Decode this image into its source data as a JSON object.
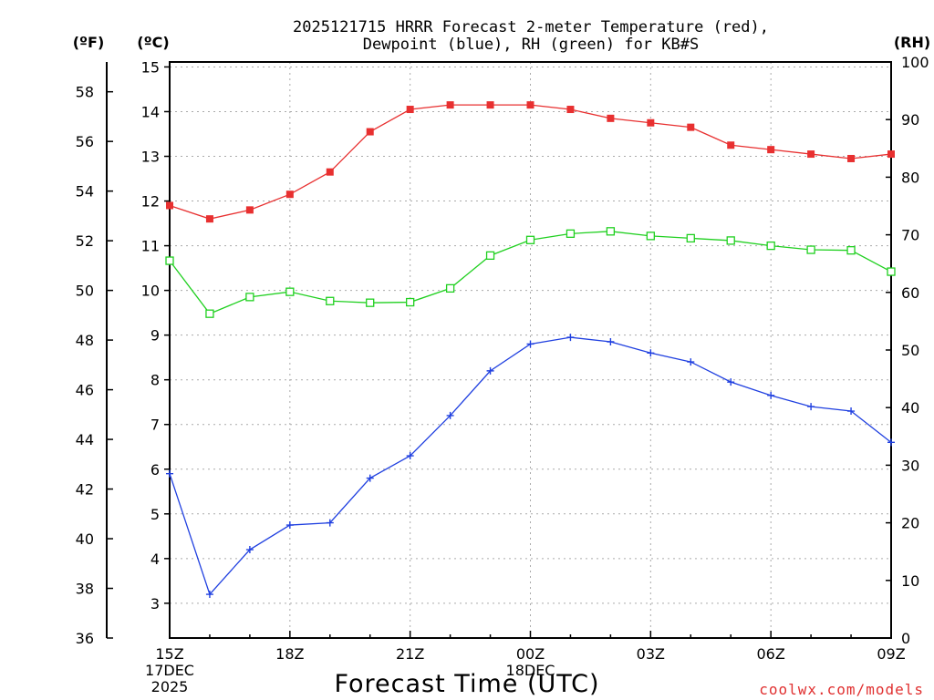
{
  "chart_data": {
    "type": "line",
    "title_line1": "2025121715 HRRR Forecast 2-meter Temperature (red),",
    "title_line2": "Dewpoint (blue), RH (green) for KB#S",
    "units": {
      "f": "(ºF)",
      "c": "(ºC)",
      "rh": "(RH)"
    },
    "xlabel": "Forecast Time (UTC)",
    "credit": "coolwx.com/models",
    "x_hours": [
      0,
      1,
      2,
      3,
      4,
      5,
      6,
      7,
      8,
      9,
      10,
      11,
      12,
      13,
      14,
      15,
      16,
      17,
      18
    ],
    "x_ticks": [
      {
        "hour": 0,
        "lines": [
          "15Z",
          "17DEC",
          "2025"
        ]
      },
      {
        "hour": 3,
        "lines": [
          "18Z"
        ]
      },
      {
        "hour": 6,
        "lines": [
          "21Z"
        ]
      },
      {
        "hour": 9,
        "lines": [
          "00Z",
          "18DEC"
        ]
      },
      {
        "hour": 12,
        "lines": [
          "03Z"
        ]
      },
      {
        "hour": 15,
        "lines": [
          "06Z"
        ]
      },
      {
        "hour": 18,
        "lines": [
          "09Z"
        ]
      }
    ],
    "ylim_c": [
      2.2222,
      15.1111
    ],
    "ylim_rh": [
      0,
      100
    ],
    "y_ticks_f": [
      36,
      38,
      40,
      42,
      44,
      46,
      48,
      50,
      52,
      54,
      56,
      58
    ],
    "y_ticks_c": [
      3,
      4,
      5,
      6,
      7,
      8,
      9,
      10,
      11,
      12,
      13,
      14,
      15
    ],
    "y_ticks_rh": [
      0,
      10,
      20,
      30,
      40,
      50,
      60,
      70,
      80,
      90,
      100
    ],
    "grid": true,
    "series": [
      {
        "name": "Temperature",
        "axis": "c",
        "color": "#e83030",
        "marker": "filled-square",
        "values": [
          11.9,
          11.6,
          11.8,
          12.15,
          12.65,
          13.55,
          14.05,
          14.15,
          14.15,
          14.15,
          14.05,
          13.85,
          13.75,
          13.65,
          13.25,
          13.15,
          13.05,
          12.95,
          13.05
        ]
      },
      {
        "name": "Dewpoint",
        "axis": "c",
        "color": "#2040e0",
        "marker": "plus",
        "values": [
          5.9,
          3.2,
          4.2,
          4.75,
          4.8,
          5.8,
          6.3,
          7.2,
          8.2,
          8.8,
          8.95,
          8.85,
          8.6,
          8.4,
          7.95,
          7.65,
          7.4,
          7.3,
          6.6
        ]
      },
      {
        "name": "RH",
        "axis": "rh",
        "color": "#20d020",
        "marker": "open-square",
        "values": [
          65.5,
          56.3,
          59.2,
          60.1,
          58.5,
          58.2,
          58.3,
          60.7,
          66.4,
          69.1,
          70.2,
          70.6,
          69.8,
          69.4,
          69,
          68.1,
          67.4,
          67.3,
          63.6
        ]
      }
    ]
  }
}
